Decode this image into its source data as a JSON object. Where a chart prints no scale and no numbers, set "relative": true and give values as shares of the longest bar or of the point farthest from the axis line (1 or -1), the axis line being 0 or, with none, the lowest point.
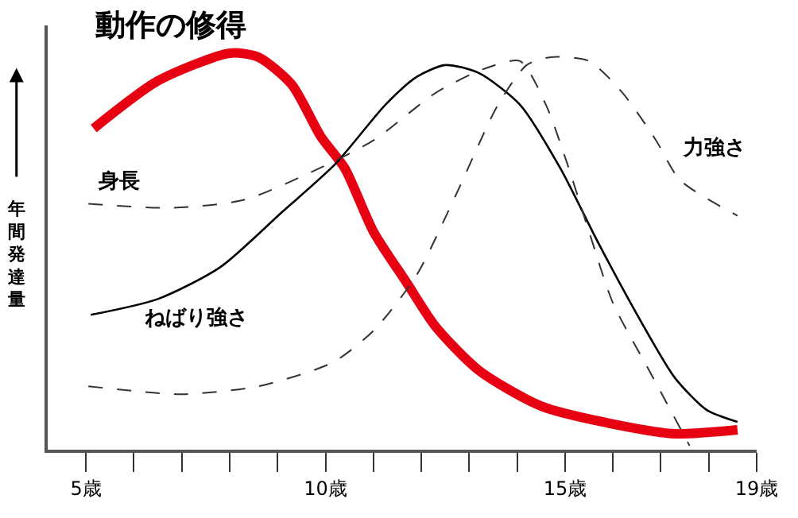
{
  "chart_data": {
    "type": "line",
    "title": "動作の修得",
    "ylabel": "年間発達量",
    "relative": true,
    "marker": "none",
    "xlim": [
      4.2,
      19
    ],
    "xticks": [
      {
        "value": 5,
        "label": "5歳"
      },
      {
        "value": 6,
        "label": null
      },
      {
        "value": 7,
        "label": null
      },
      {
        "value": 8,
        "label": null
      },
      {
        "value": 9,
        "label": null
      },
      {
        "value": 10,
        "label": "10歳"
      },
      {
        "value": 11,
        "label": null
      },
      {
        "value": 12,
        "label": null
      },
      {
        "value": 13,
        "label": null
      },
      {
        "value": 14,
        "label": null
      },
      {
        "value": 15,
        "label": "15歳"
      },
      {
        "value": 16,
        "label": null
      },
      {
        "value": 17,
        "label": null
      },
      {
        "value": 18,
        "label": null
      },
      {
        "value": 19,
        "label": "19歳"
      }
    ],
    "series": [
      {
        "color": "#e60012",
        "line_style": "solid",
        "x": [
          5.16,
          6.5,
          8.0,
          8.6,
          9.3,
          9.9,
          10.4,
          11.0,
          11.7,
          12.3,
          13.2,
          14.5,
          16.2,
          17.3,
          18.6
        ],
        "values": [
          0.81,
          0.93,
          1.0,
          0.99,
          0.92,
          0.79,
          0.71,
          0.55,
          0.42,
          0.31,
          0.2,
          0.11,
          0.06,
          0.04,
          0.05
        ]
      },
      {
        "color": "#000000",
        "line_style": "solid",
        "x": [
          5.1,
          6.5,
          7.8,
          9.1,
          10.2,
          11.25,
          11.9,
          12.5,
          13.2,
          14.06,
          14.9,
          15.7,
          16.6,
          17.3,
          17.96,
          18.6
        ],
        "values": [
          0.34,
          0.38,
          0.46,
          0.6,
          0.72,
          0.87,
          0.94,
          0.97,
          0.95,
          0.87,
          0.71,
          0.52,
          0.32,
          0.18,
          0.1,
          0.07
        ]
      },
      {
        "color": "#333333",
        "line_style": "dashed",
        "x": [
          5.05,
          6.8,
          8.3,
          9.7,
          11.0,
          12.3,
          13.3,
          14.06,
          14.6,
          15.05,
          15.5,
          16.0,
          16.8,
          17.6
        ],
        "values": [
          0.62,
          0.61,
          0.63,
          0.7,
          0.78,
          0.9,
          0.96,
          0.98,
          0.87,
          0.72,
          0.55,
          0.37,
          0.19,
          0.01
        ]
      },
      {
        "color": "#333333",
        "line_style": "dashed",
        "x": [
          5.05,
          7.0,
          8.6,
          10.15,
          11.0,
          11.9,
          12.75,
          13.6,
          14.2,
          14.7,
          15.5,
          16.2,
          16.9,
          17.4,
          18.6
        ],
        "values": [
          0.16,
          0.14,
          0.16,
          0.22,
          0.3,
          0.44,
          0.65,
          0.87,
          0.97,
          0.99,
          0.98,
          0.9,
          0.78,
          0.68,
          0.59
        ]
      }
    ],
    "annotations": [
      "身長",
      "ねばり強さ",
      "力強さ"
    ]
  }
}
